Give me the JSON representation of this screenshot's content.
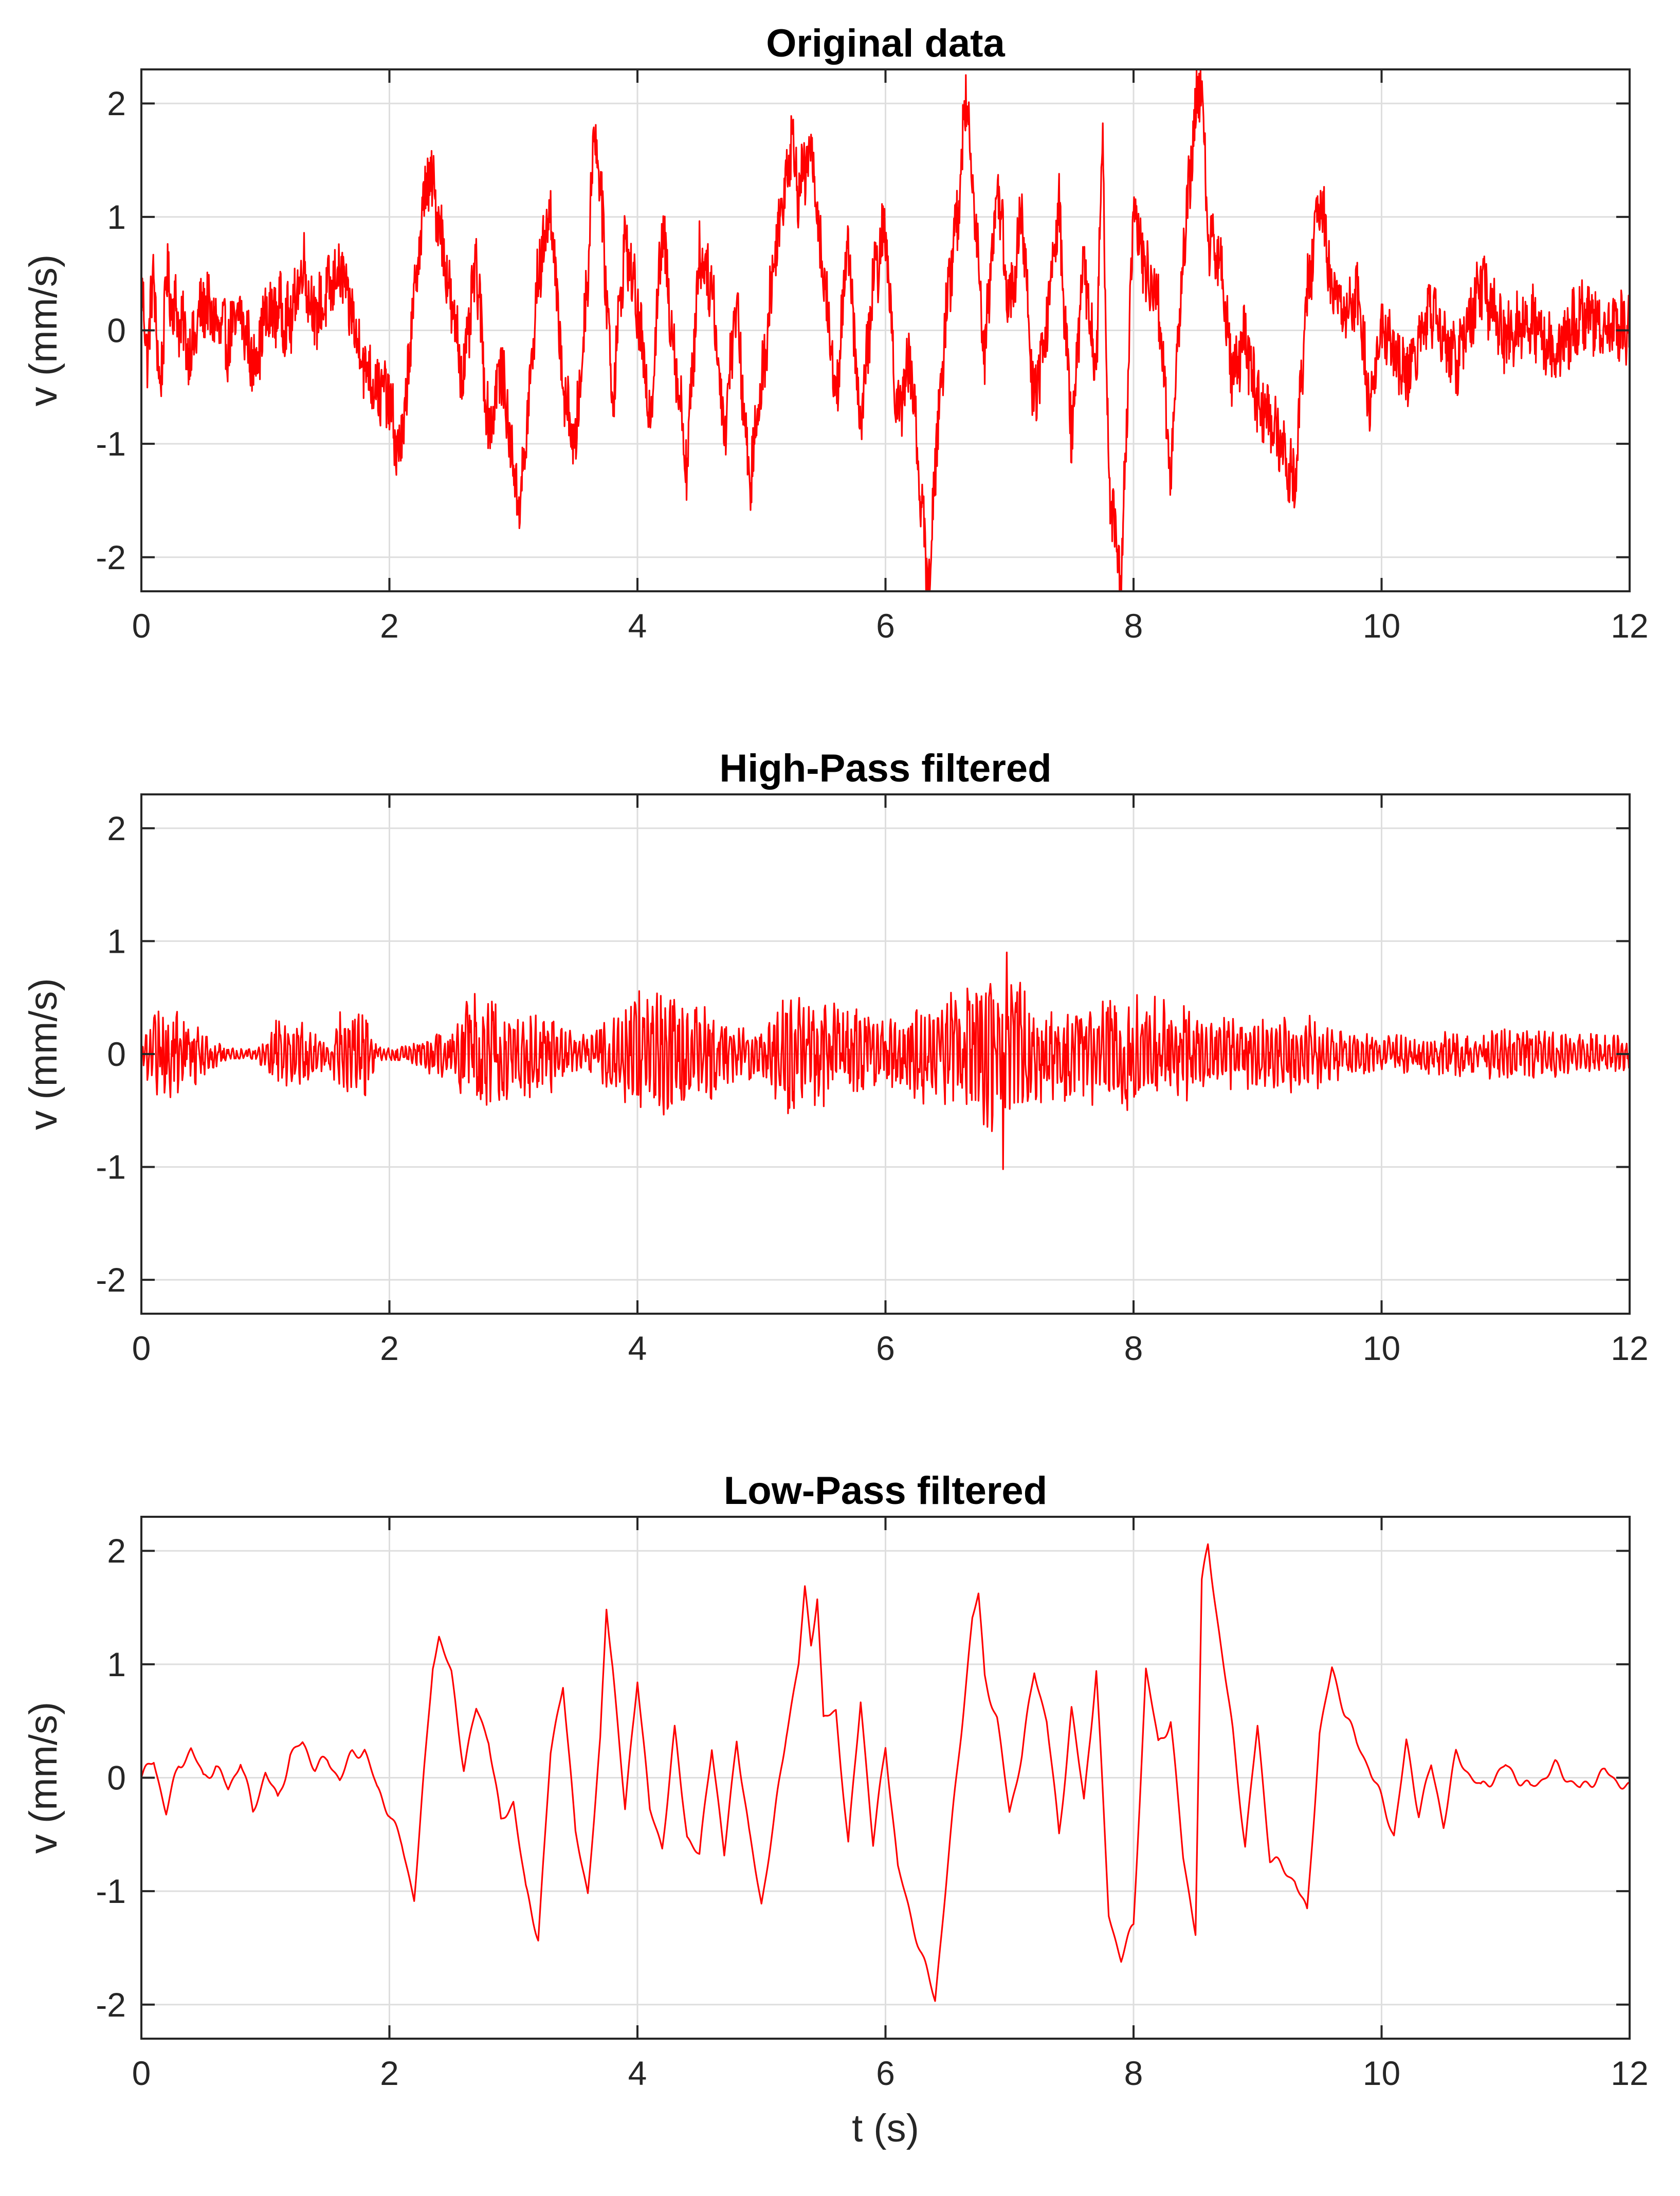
{
  "colors": {
    "series": "#ff0000",
    "axis": "#262626",
    "grid": "#dedede",
    "background": "#ffffff"
  },
  "chart_data": [
    {
      "id": "original",
      "type": "line",
      "title": "Original data",
      "xlabel": "",
      "ylabel": "v (mm/s)",
      "xlim": [
        0,
        12
      ],
      "ylim": [
        -2.3,
        2.3
      ],
      "xticks": [
        0,
        2,
        4,
        6,
        8,
        10,
        12
      ],
      "xtick_labels": [
        "0",
        "2",
        "4",
        "6",
        "8",
        "10",
        "12"
      ],
      "yticks": [
        2,
        1,
        0,
        -1,
        -2
      ],
      "ytick_labels": [
        "2",
        "1",
        "0",
        "-1",
        "-2"
      ],
      "grid": true,
      "series": [
        {
          "color": "#ff0000",
          "x": [
            0,
            0.05,
            0.1,
            0.15,
            0.2,
            0.3,
            0.4,
            0.5,
            0.6,
            0.7,
            0.8,
            0.9,
            1.0,
            1.1,
            1.2,
            1.3,
            1.4,
            1.5,
            1.6,
            1.7,
            1.8,
            1.9,
            2.0,
            2.05,
            2.1,
            2.2,
            2.3,
            2.35,
            2.4,
            2.5,
            2.6,
            2.7,
            2.8,
            2.9,
            3.0,
            3.05,
            3.1,
            3.2,
            3.3,
            3.4,
            3.5,
            3.6,
            3.65,
            3.7,
            3.8,
            3.9,
            4.0,
            4.1,
            4.2,
            4.3,
            4.4,
            4.5,
            4.6,
            4.7,
            4.8,
            4.9,
            5.0,
            5.1,
            5.2,
            5.25,
            5.3,
            5.4,
            5.5,
            5.6,
            5.7,
            5.8,
            5.9,
            6.0,
            6.1,
            6.2,
            6.3,
            6.35,
            6.4,
            6.5,
            6.6,
            6.65,
            6.7,
            6.8,
            6.9,
            7.0,
            7.1,
            7.2,
            7.3,
            7.4,
            7.5,
            7.6,
            7.7,
            7.75,
            7.8,
            7.9,
            8.0,
            8.1,
            8.2,
            8.3,
            8.4,
            8.5,
            8.55,
            8.6,
            8.7,
            8.8,
            8.9,
            9.0,
            9.1,
            9.2,
            9.3,
            9.4,
            9.5,
            9.6,
            9.7,
            9.8,
            9.9,
            10.0,
            10.2,
            10.4,
            10.6,
            10.8,
            11.0,
            11.2,
            11.4,
            11.6,
            11.8,
            12.0
          ],
          "y": [
            0.35,
            -0.2,
            0.5,
            -0.6,
            0.45,
            0.1,
            -0.2,
            0.25,
            0.05,
            -0.1,
            0.15,
            -0.3,
            0.1,
            0.2,
            0.05,
            0.6,
            0.1,
            0.3,
            0.55,
            0.1,
            -0.3,
            -0.5,
            -0.6,
            -1.0,
            -1.05,
            0.3,
            1.35,
            1.25,
            1.0,
            0.2,
            -0.4,
            0.6,
            -0.9,
            -0.3,
            -1.2,
            -1.55,
            -1.0,
            0.5,
            1.1,
            -0.5,
            -1.05,
            0.5,
            1.85,
            1.3,
            -0.6,
            0.8,
            0.2,
            -0.8,
            0.9,
            -0.2,
            -1.2,
            0.7,
            0.4,
            -0.9,
            0.3,
            -1.4,
            -0.5,
            0.6,
            1.4,
            1.75,
            1.2,
            1.6,
            0.5,
            -0.6,
            0.8,
            -0.9,
            0.4,
            0.9,
            -0.8,
            -0.2,
            -1.7,
            -2.3,
            -1.2,
            0.3,
            1.2,
            2.1,
            1.4,
            -0.2,
            1.3,
            0.2,
            1.0,
            -0.7,
            0.1,
            1.05,
            -0.9,
            0.6,
            -0.4,
            1.75,
            -1.3,
            -2.2,
            1.05,
            0.5,
            0.3,
            -1.3,
            0.7,
            1.9,
            2.3,
            0.8,
            0.6,
            -0.4,
            -0.1,
            -0.6,
            -0.8,
            -1.0,
            -1.35,
            0.3,
            1.2,
            0.4,
            0.2,
            0.3,
            -0.6,
            0.05,
            -0.4,
            0.2,
            -0.3,
            0.4,
            -0.1,
            0.1,
            -0.2,
            0.15,
            0.05,
            0.0
          ]
        }
      ]
    },
    {
      "id": "highpass",
      "type": "line",
      "title": "High-Pass filtered",
      "xlabel": "",
      "ylabel": "v (mm/s)",
      "xlim": [
        0,
        12
      ],
      "ylim": [
        -2.3,
        2.3
      ],
      "xticks": [
        0,
        2,
        4,
        6,
        8,
        10,
        12
      ],
      "xtick_labels": [
        "0",
        "2",
        "4",
        "6",
        "8",
        "10",
        "12"
      ],
      "yticks": [
        2,
        1,
        0,
        -1,
        -2
      ],
      "ytick_labels": [
        "2",
        "1",
        "0",
        "-1",
        "-2"
      ],
      "grid": true,
      "envelope": {
        "t": [
          0,
          0.1,
          0.3,
          0.5,
          0.7,
          0.9,
          1.0,
          1.1,
          1.3,
          1.5,
          1.6,
          1.8,
          1.9,
          2.0,
          2.2,
          2.5,
          2.7,
          3.0,
          3.3,
          3.5,
          3.8,
          4.0,
          4.2,
          4.5,
          4.8,
          5.0,
          5.2,
          5.5,
          5.8,
          6.0,
          6.3,
          6.6,
          6.9,
          7.0,
          7.2,
          7.5,
          7.8,
          8.0,
          8.3,
          8.6,
          9.0,
          9.4,
          9.6,
          10.0,
          10.5,
          11.0,
          11.5,
          12.0
        ],
        "amp": [
          0.15,
          0.4,
          0.45,
          0.2,
          0.05,
          0.05,
          0.15,
          0.35,
          0.3,
          0.1,
          0.4,
          0.4,
          0.08,
          0.06,
          0.1,
          0.3,
          0.55,
          0.35,
          0.4,
          0.15,
          0.35,
          0.55,
          0.6,
          0.45,
          0.25,
          0.2,
          0.55,
          0.45,
          0.4,
          0.3,
          0.45,
          0.65,
          0.75,
          0.8,
          0.5,
          0.4,
          0.5,
          0.55,
          0.45,
          0.35,
          0.3,
          0.35,
          0.25,
          0.15,
          0.2,
          0.22,
          0.2,
          0.15
        ]
      },
      "peaks": {
        "max": 0.9,
        "max_t": 6.98,
        "min": -1.02,
        "min_t": 6.95
      },
      "series": [
        {
          "color": "#ff0000"
        }
      ]
    },
    {
      "id": "lowpass",
      "type": "line",
      "title": "Low-Pass filtered",
      "xlabel": "t (s)",
      "ylabel": "v (mm/s)",
      "xlim": [
        0,
        12
      ],
      "ylim": [
        -2.3,
        2.3
      ],
      "xticks": [
        0,
        2,
        4,
        6,
        8,
        10,
        12
      ],
      "xtick_labels": [
        "0",
        "2",
        "4",
        "6",
        "8",
        "10",
        "12"
      ],
      "yticks": [
        2,
        1,
        0,
        -1,
        -2
      ],
      "ytick_labels": [
        "2",
        "1",
        "0",
        "-1",
        "-2"
      ],
      "grid": true,
      "series": [
        {
          "color": "#ff0000",
          "x": [
            0,
            0.1,
            0.2,
            0.3,
            0.4,
            0.5,
            0.6,
            0.7,
            0.8,
            0.9,
            1.0,
            1.1,
            1.2,
            1.3,
            1.4,
            1.5,
            1.6,
            1.7,
            1.8,
            1.9,
            2.0,
            2.1,
            2.2,
            2.3,
            2.35,
            2.4,
            2.5,
            2.6,
            2.7,
            2.8,
            2.9,
            3.0,
            3.1,
            3.2,
            3.3,
            3.4,
            3.5,
            3.6,
            3.7,
            3.75,
            3.8,
            3.9,
            4.0,
            4.1,
            4.2,
            4.3,
            4.4,
            4.5,
            4.6,
            4.7,
            4.8,
            4.9,
            5.0,
            5.1,
            5.2,
            5.3,
            5.35,
            5.4,
            5.45,
            5.5,
            5.6,
            5.7,
            5.8,
            5.9,
            6.0,
            6.1,
            6.2,
            6.3,
            6.4,
            6.5,
            6.6,
            6.7,
            6.75,
            6.8,
            6.9,
            7.0,
            7.1,
            7.2,
            7.3,
            7.4,
            7.5,
            7.6,
            7.7,
            7.8,
            7.9,
            8.0,
            8.1,
            8.2,
            8.3,
            8.4,
            8.5,
            8.55,
            8.6,
            8.7,
            8.8,
            8.9,
            9.0,
            9.1,
            9.2,
            9.3,
            9.4,
            9.5,
            9.6,
            9.7,
            9.8,
            9.9,
            10.0,
            10.1,
            10.2,
            10.3,
            10.4,
            10.5,
            10.6,
            10.8,
            11.0,
            11.2,
            11.4,
            11.6,
            11.8,
            12.0
          ],
          "y": [
            0.0,
            0.15,
            -0.3,
            0.1,
            0.25,
            0.0,
            0.1,
            -0.1,
            0.15,
            -0.3,
            0.05,
            -0.2,
            0.2,
            0.3,
            0.1,
            0.15,
            0.0,
            0.2,
            0.25,
            -0.1,
            -0.3,
            -0.6,
            -1.05,
            0.3,
            1.0,
            1.25,
            0.9,
            0.1,
            0.6,
            0.35,
            -0.4,
            -0.2,
            -1.0,
            -1.4,
            0.2,
            0.85,
            -0.5,
            -1.0,
            0.3,
            1.5,
            1.0,
            -0.3,
            0.9,
            -0.3,
            -0.6,
            0.4,
            -0.5,
            -0.7,
            0.3,
            -0.7,
            0.35,
            -0.5,
            -1.1,
            -0.4,
            0.4,
            1.0,
            1.65,
            1.2,
            1.6,
            0.5,
            0.6,
            -0.6,
            0.7,
            -0.6,
            0.3,
            -0.8,
            -1.2,
            -1.6,
            -1.95,
            -0.8,
            0.3,
            1.4,
            1.6,
            0.9,
            0.5,
            -0.3,
            0.2,
            0.95,
            0.5,
            -0.5,
            0.6,
            -0.2,
            0.95,
            -1.2,
            -1.6,
            -1.3,
            0.95,
            0.3,
            0.5,
            -0.7,
            -1.35,
            1.7,
            2.05,
            1.2,
            0.4,
            -0.6,
            0.45,
            -0.7,
            -0.8,
            -0.9,
            -1.2,
            0.4,
            0.95,
            0.6,
            0.3,
            0.1,
            -0.2,
            -0.5,
            0.3,
            -0.3,
            0.1,
            -0.4,
            0.2,
            -0.1,
            0.1,
            -0.1,
            0.1,
            -0.1,
            0.05,
            -0.1
          ]
        }
      ]
    }
  ]
}
